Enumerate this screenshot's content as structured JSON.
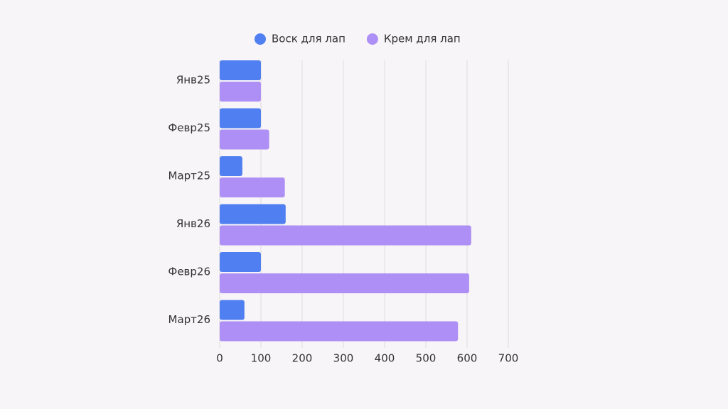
{
  "chart_data": {
    "type": "bar",
    "orientation": "horizontal",
    "categories": [
      "Янв25",
      "Февр25",
      "Март25",
      "Янв26",
      "Февр26",
      "Март26"
    ],
    "series": [
      {
        "name": "Воск для лап",
        "color": "#4f7ff0",
        "values": [
          100,
          100,
          55,
          160,
          100,
          60
        ]
      },
      {
        "name": "Крем для лап",
        "color": "#ae8ff5",
        "values": [
          100,
          120,
          158,
          610,
          605,
          578
        ]
      }
    ],
    "xlim": [
      0,
      700
    ],
    "xticks": [
      0,
      100,
      200,
      300,
      400,
      500,
      600,
      700
    ],
    "grid": true,
    "legend": "top"
  }
}
